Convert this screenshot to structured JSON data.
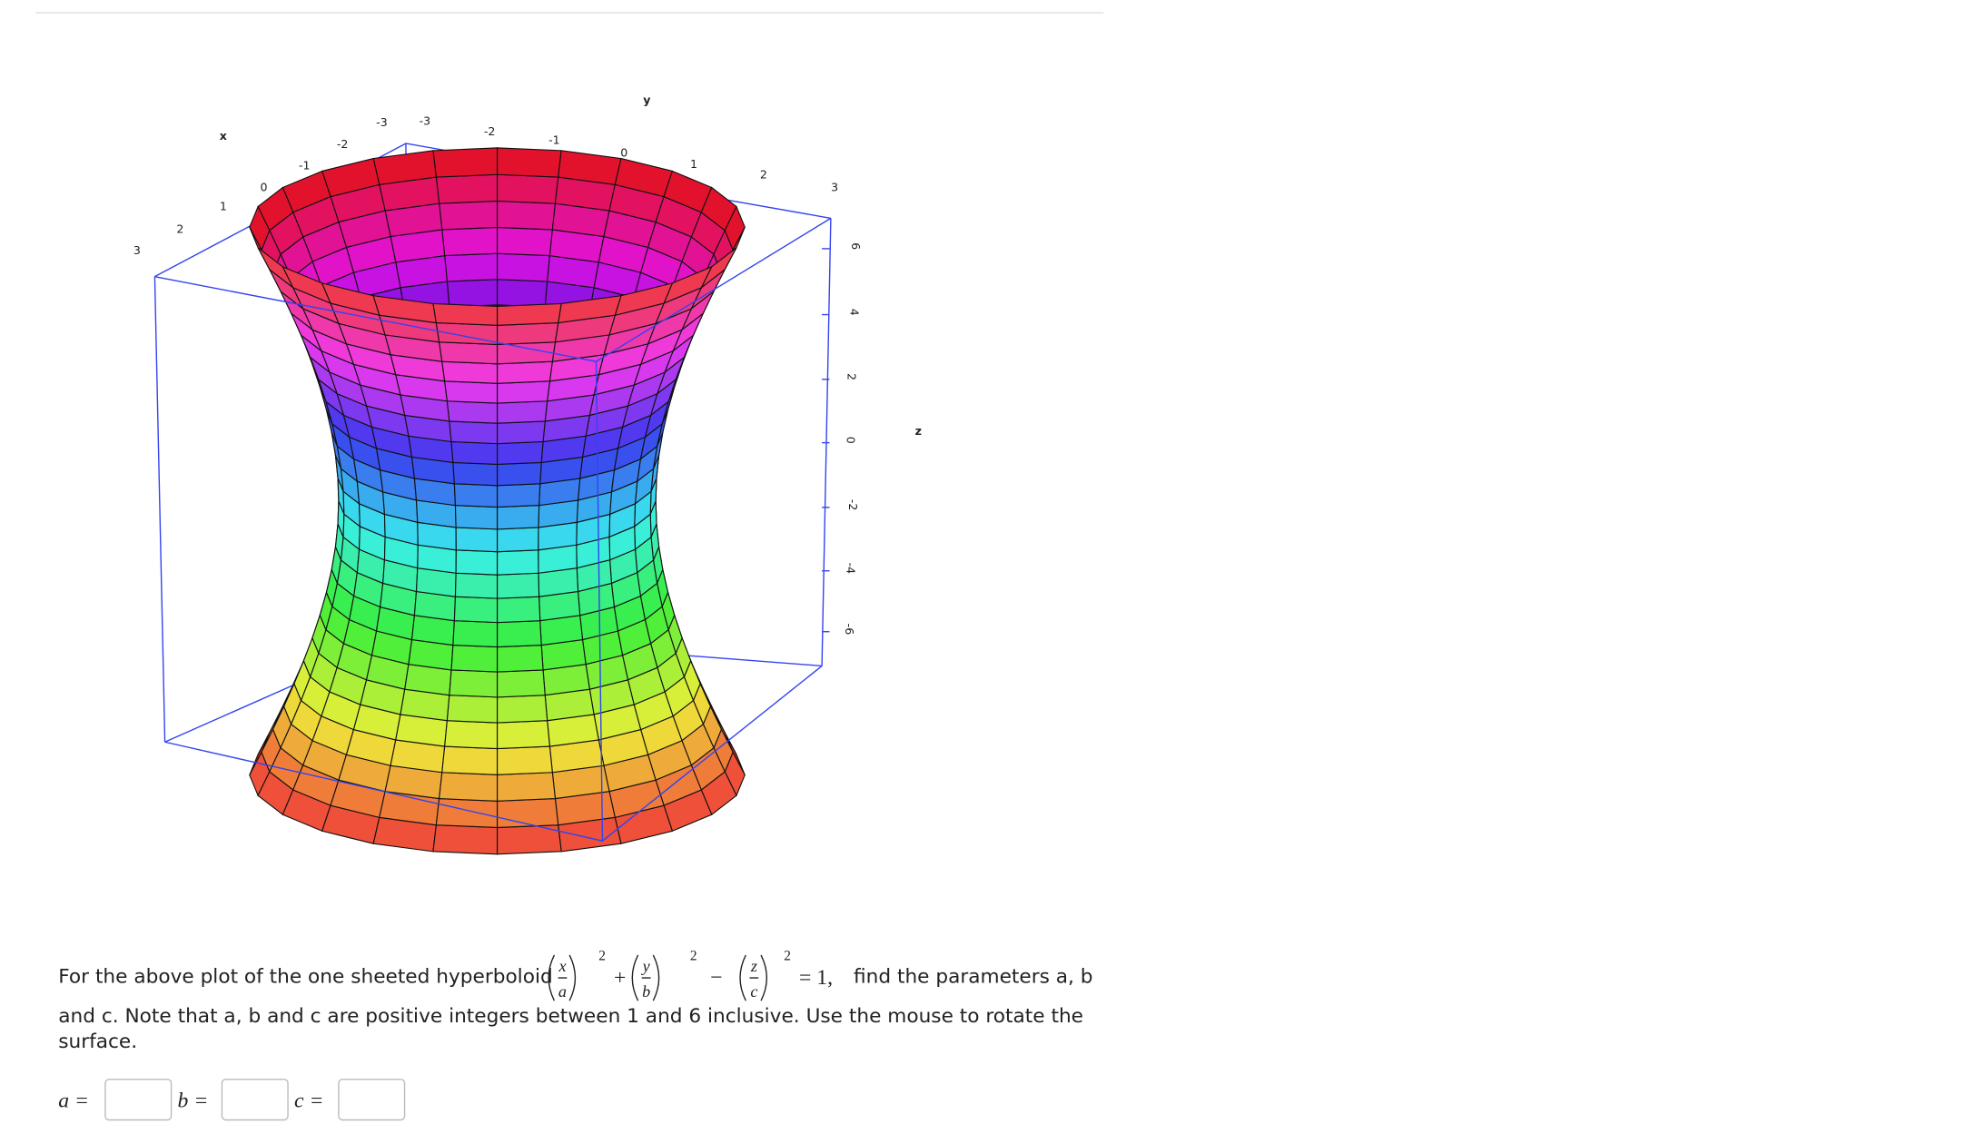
{
  "plot": {
    "x_axis": {
      "label": "x",
      "ticks": [
        "3",
        "2",
        "1",
        "0",
        "-1",
        "-2",
        "-3"
      ]
    },
    "y_axis": {
      "label": "y",
      "ticks": [
        "-3",
        "-2",
        "-1",
        "0",
        "1",
        "2",
        "3"
      ]
    },
    "z_axis": {
      "label": "z",
      "ticks": [
        "6",
        "4",
        "2",
        "0",
        "-2",
        "-4",
        "-6"
      ]
    }
  },
  "question": {
    "intro": "For the above plot of the one sheeted hyperboloid",
    "equation": {
      "x": "x",
      "a": "a",
      "y": "y",
      "b": "b",
      "z": "z",
      "c": "c",
      "power": "2",
      "plus": "+",
      "minus": "−",
      "rhs": "= 1,"
    },
    "after": "find the parameters a, b",
    "line2": "and c. Note that a, b and c are positive integers between 1 and 6 inclusive. Use the mouse to rotate the",
    "line3": "surface."
  },
  "answers": [
    {
      "label": "a ="
    },
    {
      "label": "b ="
    },
    {
      "label": "c ="
    }
  ]
}
